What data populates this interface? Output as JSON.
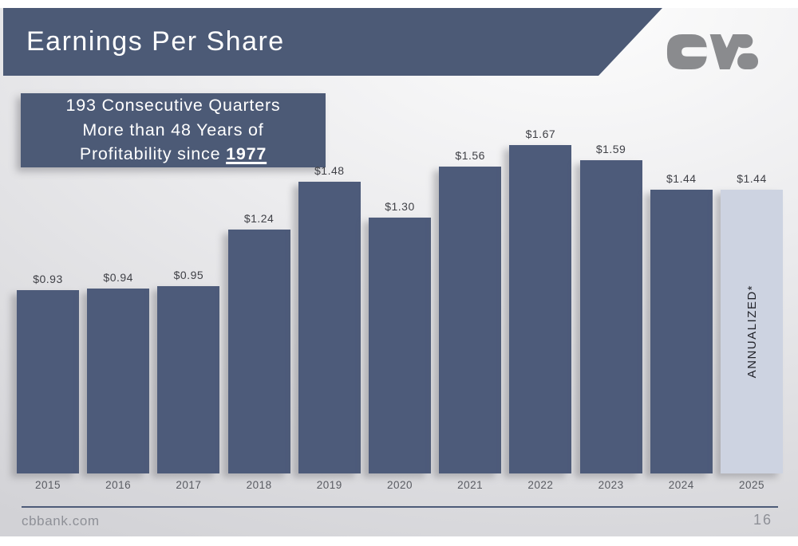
{
  "header": {
    "title": "Earnings Per Share",
    "bg_color": "#4c5a76"
  },
  "logo": {
    "name": "cvb-logo",
    "color": "#8a8b8e"
  },
  "callout": {
    "line1": "193 Consecutive Quarters",
    "line2": "More than 48 Years of",
    "line3_prefix": "Profitability since ",
    "line3_year": "1977",
    "bg_color": "#4c5a76"
  },
  "chart_data": {
    "type": "bar",
    "title": "Earnings Per Share",
    "xlabel": "",
    "ylabel": "",
    "categories": [
      "2015",
      "2016",
      "2017",
      "2018",
      "2019",
      "2020",
      "2021",
      "2022",
      "2023",
      "2024",
      "2025"
    ],
    "values": [
      0.93,
      0.94,
      0.95,
      1.24,
      1.48,
      1.3,
      1.56,
      1.67,
      1.59,
      1.44,
      1.44
    ],
    "data_labels": [
      "$0.93",
      "$0.94",
      "$0.95",
      "$1.24",
      "$1.48",
      "$1.30",
      "$1.56",
      "$1.67",
      "$1.59",
      "$1.44",
      "$1.44"
    ],
    "bar_color": "#4d5b7a",
    "highlight_index": 10,
    "highlight_color": "#cdd3e1",
    "highlight_annotation": "ANNUALIZED*",
    "ylim": [
      0,
      1.8
    ],
    "grid": false,
    "legend": null
  },
  "footer": {
    "site": "cbbank.com",
    "page": "16"
  }
}
